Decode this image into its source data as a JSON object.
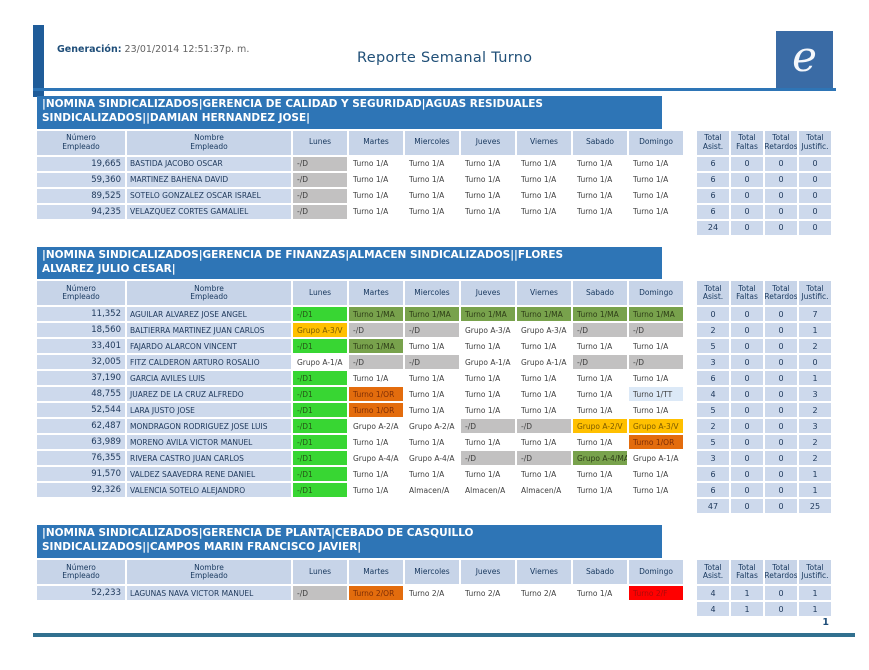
{
  "header": {
    "generation_label": "Generación:",
    "generation_value": " 23/01/2014 12:51:37p. m.",
    "title": "Reporte Semanal Turno",
    "logo_glyph": "e"
  },
  "footer": {
    "page_number": "1"
  },
  "columns": {
    "numero": "Número\nEmpleado",
    "nombre": "Nombre\nEmpleado",
    "days": [
      "Lunes",
      "Martes",
      "Miercoles",
      "Jueves",
      "Viernes",
      "Sabado",
      "Domingo"
    ],
    "totals": [
      "Total\nAsist.",
      "Total\nFaltas",
      "Total\nRetardos",
      "Total\nJustific."
    ]
  },
  "palette": {
    "band_blue": "#2E75B6",
    "header_cell": "#C7D4E8",
    "label_cell": "#CDD9EC",
    "accent_dark_blue": "#1F5C99",
    "footer_line": "#31708F",
    "cell_types": {
      "plain": {
        "bg": "#FFFFFF",
        "fg": "#404040"
      },
      "off": {
        "bg": "#C2C1C1",
        "fg": "#404040"
      },
      "off1": {
        "bg": "#38D633",
        "fg": "#265617"
      },
      "ma": {
        "bg": "#78A24C",
        "fg": "#2E3D17"
      },
      "or": {
        "bg": "#E36C0D",
        "fg": "#7C2D06"
      },
      "vac": {
        "bg": "#FFC000",
        "fg": "#7C5A00"
      },
      "falta": {
        "bg": "#FF0000",
        "fg": "#AD0A0A"
      },
      "tt": {
        "bg": "#DCE9F7",
        "fg": "#404040"
      }
    }
  },
  "sections": [
    {
      "title": "|NOMINA SINDICALIZADOS|GERENCIA DE CALIDAD Y SEGURIDAD|AGUAS RESIDUALES\nSINDICALIZADOS||DAMIAN HERNANDEZ JOSE|",
      "rows": [
        {
          "num": "19,665",
          "name": "BASTIDA JACOBO OSCAR",
          "days": [
            [
              "-/D",
              "off"
            ],
            [
              "Turno 1/A",
              "plain"
            ],
            [
              "Turno 1/A",
              "plain"
            ],
            [
              "Turno 1/A",
              "plain"
            ],
            [
              "Turno 1/A",
              "plain"
            ],
            [
              "Turno 1/A",
              "plain"
            ],
            [
              "Turno 1/A",
              "plain"
            ]
          ],
          "totals": [
            "6",
            "0",
            "0",
            "0"
          ]
        },
        {
          "num": "59,360",
          "name": "MARTINEZ BAHENA DAVID",
          "days": [
            [
              "-/D",
              "off"
            ],
            [
              "Turno 1/A",
              "plain"
            ],
            [
              "Turno 1/A",
              "plain"
            ],
            [
              "Turno 1/A",
              "plain"
            ],
            [
              "Turno 1/A",
              "plain"
            ],
            [
              "Turno 1/A",
              "plain"
            ],
            [
              "Turno 1/A",
              "plain"
            ]
          ],
          "totals": [
            "6",
            "0",
            "0",
            "0"
          ]
        },
        {
          "num": "89,525",
          "name": "SOTELO GONZALEZ OSCAR ISRAEL",
          "days": [
            [
              "-/D",
              "off"
            ],
            [
              "Turno 1/A",
              "plain"
            ],
            [
              "Turno 1/A",
              "plain"
            ],
            [
              "Turno 1/A",
              "plain"
            ],
            [
              "Turno 1/A",
              "plain"
            ],
            [
              "Turno 1/A",
              "plain"
            ],
            [
              "Turno 1/A",
              "plain"
            ]
          ],
          "totals": [
            "6",
            "0",
            "0",
            "0"
          ]
        },
        {
          "num": "94,235",
          "name": "VELAZQUEZ CORTES GAMALIEL",
          "days": [
            [
              "-/D",
              "off"
            ],
            [
              "Turno 1/A",
              "plain"
            ],
            [
              "Turno 1/A",
              "plain"
            ],
            [
              "Turno 1/A",
              "plain"
            ],
            [
              "Turno 1/A",
              "plain"
            ],
            [
              "Turno 1/A",
              "plain"
            ],
            [
              "Turno 1/A",
              "plain"
            ]
          ],
          "totals": [
            "6",
            "0",
            "0",
            "0"
          ]
        }
      ],
      "grand": [
        "24",
        "0",
        "0",
        "0"
      ]
    },
    {
      "title": "|NOMINA SINDICALIZADOS|GERENCIA DE FINANZAS|ALMACEN SINDICALIZADOS||FLORES\nALVAREZ JULIO CESAR|",
      "rows": [
        {
          "num": "11,352",
          "name": "AGUILAR ALVAREZ JOSE ANGEL",
          "days": [
            [
              "-/D1",
              "off1"
            ],
            [
              "Turno 1/MA",
              "ma"
            ],
            [
              "Turno 1/MA",
              "ma"
            ],
            [
              "Turno 1/MA",
              "ma"
            ],
            [
              "Turno 1/MA",
              "ma"
            ],
            [
              "Turno 1/MA",
              "ma"
            ],
            [
              "Turno 1/MA",
              "ma"
            ]
          ],
          "totals": [
            "0",
            "0",
            "0",
            "7"
          ]
        },
        {
          "num": "18,560",
          "name": "BALTIERRA MARTINEZ JUAN CARLOS",
          "days": [
            [
              "Grupo A-3/V",
              "vac"
            ],
            [
              "-/D",
              "off"
            ],
            [
              "-/D",
              "off"
            ],
            [
              "Grupo A-3/A",
              "plain"
            ],
            [
              "Grupo A-3/A",
              "plain"
            ],
            [
              "-/D",
              "off"
            ],
            [
              "-/D",
              "off"
            ]
          ],
          "totals": [
            "2",
            "0",
            "0",
            "1"
          ]
        },
        {
          "num": "33,401",
          "name": "FAJARDO ALARCON VINCENT",
          "days": [
            [
              "-/D1",
              "off1"
            ],
            [
              "Turno 1/MA",
              "ma"
            ],
            [
              "Turno 1/A",
              "plain"
            ],
            [
              "Turno 1/A",
              "plain"
            ],
            [
              "Turno 1/A",
              "plain"
            ],
            [
              "Turno 1/A",
              "plain"
            ],
            [
              "Turno 1/A",
              "plain"
            ]
          ],
          "totals": [
            "5",
            "0",
            "0",
            "2"
          ]
        },
        {
          "num": "32,005",
          "name": "FITZ CALDERON ARTURO ROSALIO",
          "days": [
            [
              "Grupo A-1/A",
              "plain"
            ],
            [
              "-/D",
              "off"
            ],
            [
              "-/D",
              "off"
            ],
            [
              "Grupo A-1/A",
              "plain"
            ],
            [
              "Grupo A-1/A",
              "plain"
            ],
            [
              "-/D",
              "off"
            ],
            [
              "-/D",
              "off"
            ]
          ],
          "totals": [
            "3",
            "0",
            "0",
            "0"
          ]
        },
        {
          "num": "37,190",
          "name": "GARCIA AVILES LUIS",
          "days": [
            [
              "-/D1",
              "off1"
            ],
            [
              "Turno 1/A",
              "plain"
            ],
            [
              "Turno 1/A",
              "plain"
            ],
            [
              "Turno 1/A",
              "plain"
            ],
            [
              "Turno 1/A",
              "plain"
            ],
            [
              "Turno 1/A",
              "plain"
            ],
            [
              "Turno 1/A",
              "plain"
            ]
          ],
          "totals": [
            "6",
            "0",
            "0",
            "1"
          ]
        },
        {
          "num": "48,755",
          "name": "JUAREZ DE LA CRUZ ALFREDO",
          "days": [
            [
              "-/D1",
              "off1"
            ],
            [
              "Turno 1/OR",
              "or"
            ],
            [
              "Turno 1/A",
              "plain"
            ],
            [
              "Turno 1/A",
              "plain"
            ],
            [
              "Turno 1/A",
              "plain"
            ],
            [
              "Turno 1/A",
              "plain"
            ],
            [
              "Turno 1/TT",
              "tt"
            ]
          ],
          "totals": [
            "4",
            "0",
            "0",
            "3"
          ]
        },
        {
          "num": "52,544",
          "name": "LARA JUSTO JOSE",
          "days": [
            [
              "-/D1",
              "off1"
            ],
            [
              "Turno 1/OR",
              "or"
            ],
            [
              "Turno 1/A",
              "plain"
            ],
            [
              "Turno 1/A",
              "plain"
            ],
            [
              "Turno 1/A",
              "plain"
            ],
            [
              "Turno 1/A",
              "plain"
            ],
            [
              "Turno 1/A",
              "plain"
            ]
          ],
          "totals": [
            "5",
            "0",
            "0",
            "2"
          ]
        },
        {
          "num": "62,487",
          "name": "MONDRAGON RODRIGUEZ JOSE LUIS",
          "days": [
            [
              "-/D1",
              "off1"
            ],
            [
              "Grupo A-2/A",
              "plain"
            ],
            [
              "Grupo A-2/A",
              "plain"
            ],
            [
              "-/D",
              "off"
            ],
            [
              "-/D",
              "off"
            ],
            [
              "Grupo A-2/V",
              "vac"
            ],
            [
              "Grupo A-3/V",
              "vac"
            ]
          ],
          "totals": [
            "2",
            "0",
            "0",
            "3"
          ]
        },
        {
          "num": "63,989",
          "name": "MORENO AVILA VICTOR MANUEL",
          "days": [
            [
              "-/D1",
              "off1"
            ],
            [
              "Turno 1/A",
              "plain"
            ],
            [
              "Turno 1/A",
              "plain"
            ],
            [
              "Turno 1/A",
              "plain"
            ],
            [
              "Turno 1/A",
              "plain"
            ],
            [
              "Turno 1/A",
              "plain"
            ],
            [
              "Turno 1/OR",
              "or"
            ]
          ],
          "totals": [
            "5",
            "0",
            "0",
            "2"
          ]
        },
        {
          "num": "76,355",
          "name": "RIVERA CASTRO JUAN CARLOS",
          "days": [
            [
              "-/D1",
              "off1"
            ],
            [
              "Grupo A-4/A",
              "plain"
            ],
            [
              "Grupo A-4/A",
              "plain"
            ],
            [
              "-/D",
              "off"
            ],
            [
              "-/D",
              "off"
            ],
            [
              "Grupo A-4/MA",
              "ma"
            ],
            [
              "Grupo A-1/A",
              "plain"
            ]
          ],
          "totals": [
            "3",
            "0",
            "0",
            "2"
          ]
        },
        {
          "num": "91,570",
          "name": "VALDEZ SAAVEDRA RENE DANIEL",
          "days": [
            [
              "-/D1",
              "off1"
            ],
            [
              "Turno 1/A",
              "plain"
            ],
            [
              "Turno 1/A",
              "plain"
            ],
            [
              "Turno 1/A",
              "plain"
            ],
            [
              "Turno 1/A",
              "plain"
            ],
            [
              "Turno 1/A",
              "plain"
            ],
            [
              "Turno 1/A",
              "plain"
            ]
          ],
          "totals": [
            "6",
            "0",
            "0",
            "1"
          ]
        },
        {
          "num": "92,326",
          "name": "VALENCIA SOTELO ALEJANDRO",
          "days": [
            [
              "-/D1",
              "off1"
            ],
            [
              "Turno 1/A",
              "plain"
            ],
            [
              "Almacen/A",
              "plain"
            ],
            [
              "Almacen/A",
              "plain"
            ],
            [
              "Almacen/A",
              "plain"
            ],
            [
              "Turno 1/A",
              "plain"
            ],
            [
              "Turno 1/A",
              "plain"
            ]
          ],
          "totals": [
            "6",
            "0",
            "0",
            "1"
          ]
        }
      ],
      "grand": [
        "47",
        "0",
        "0",
        "25"
      ]
    },
    {
      "title": "|NOMINA SINDICALIZADOS|GERENCIA DE PLANTA|CEBADO DE CASQUILLO\nSINDICALIZADOS||CAMPOS MARIN FRANCISCO JAVIER|",
      "rows": [
        {
          "num": "52,233",
          "name": "LAGUNAS NAVA VICTOR MANUEL",
          "days": [
            [
              "-/D",
              "off"
            ],
            [
              "Turno 2/OR",
              "or"
            ],
            [
              "Turno 2/A",
              "plain"
            ],
            [
              "Turno 2/A",
              "plain"
            ],
            [
              "Turno 2/A",
              "plain"
            ],
            [
              "Turno 1/A",
              "plain"
            ],
            [
              "Turno 2/F",
              "falta"
            ]
          ],
          "totals": [
            "4",
            "1",
            "0",
            "1"
          ]
        }
      ],
      "grand": [
        "4",
        "1",
        "0",
        "1"
      ]
    }
  ]
}
